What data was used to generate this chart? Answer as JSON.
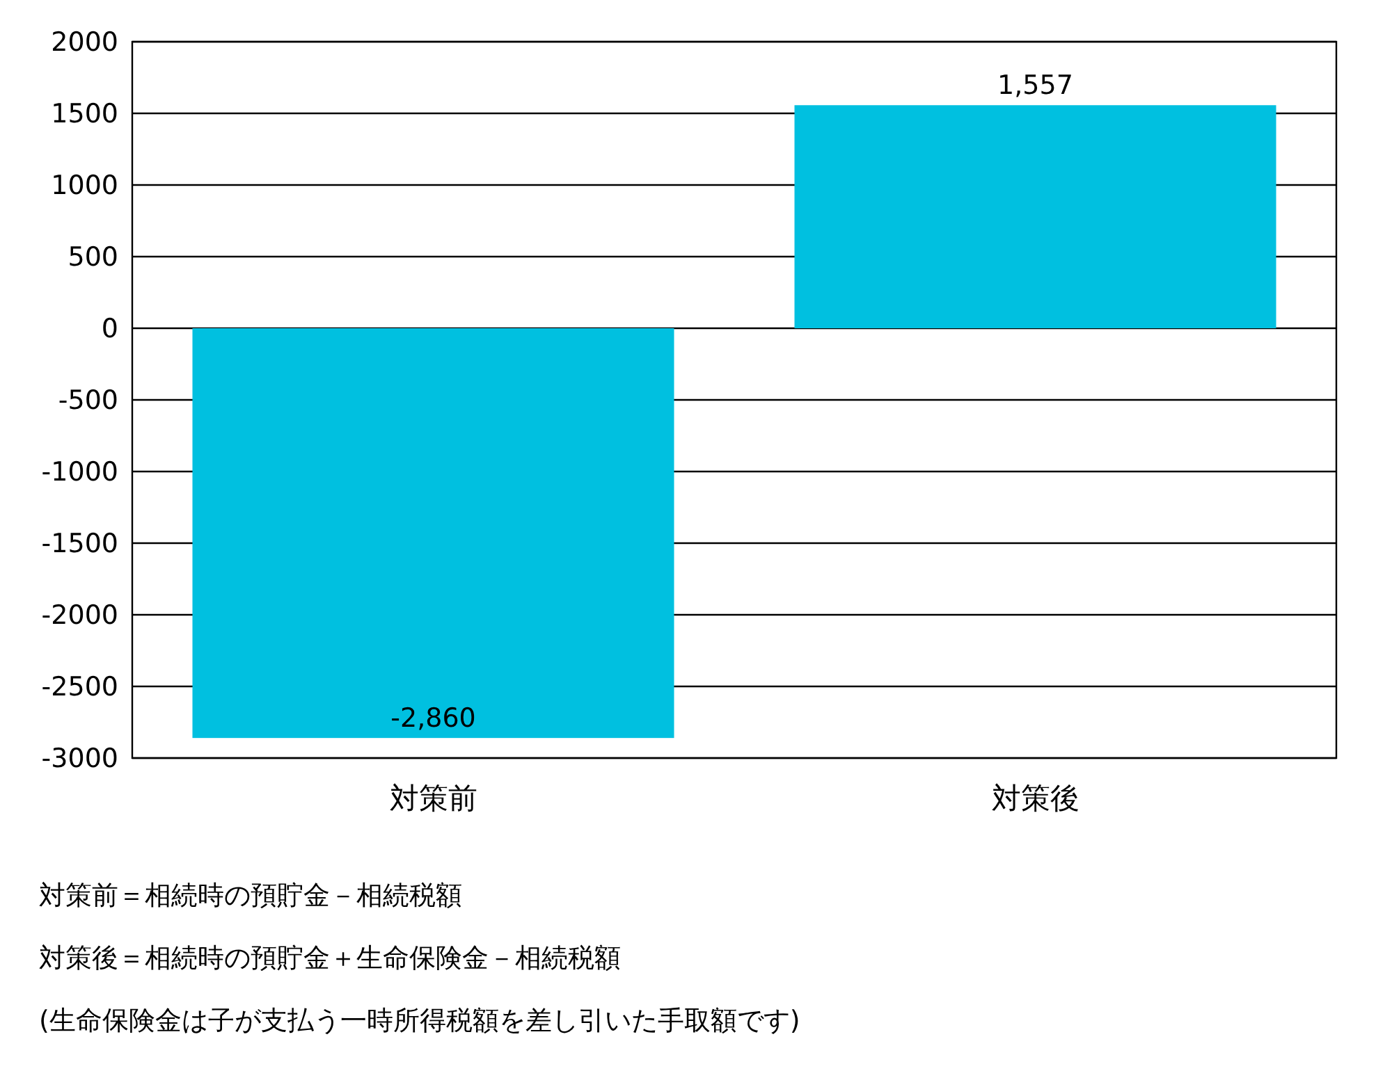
{
  "chart_data": {
    "type": "bar",
    "categories": [
      "対策前",
      "対策後"
    ],
    "values": [
      -2860,
      1557
    ],
    "color": "#00c0e0",
    "value_labels": [
      "-2,860",
      "1,557"
    ],
    "ylim": [
      -3000,
      2000
    ],
    "yticks": [
      -3000,
      -2500,
      -2000,
      -1500,
      -1000,
      -500,
      0,
      500,
      1000,
      1500,
      2000
    ],
    "grid": "y",
    "annotations": [
      "対策前＝相続時の預貯金－相続税額",
      "対策後＝相続時の預貯金＋生命保険金－相続税額",
      "(生命保険金は子が支払う一時所得税額を差し引いた手取額です)"
    ]
  }
}
